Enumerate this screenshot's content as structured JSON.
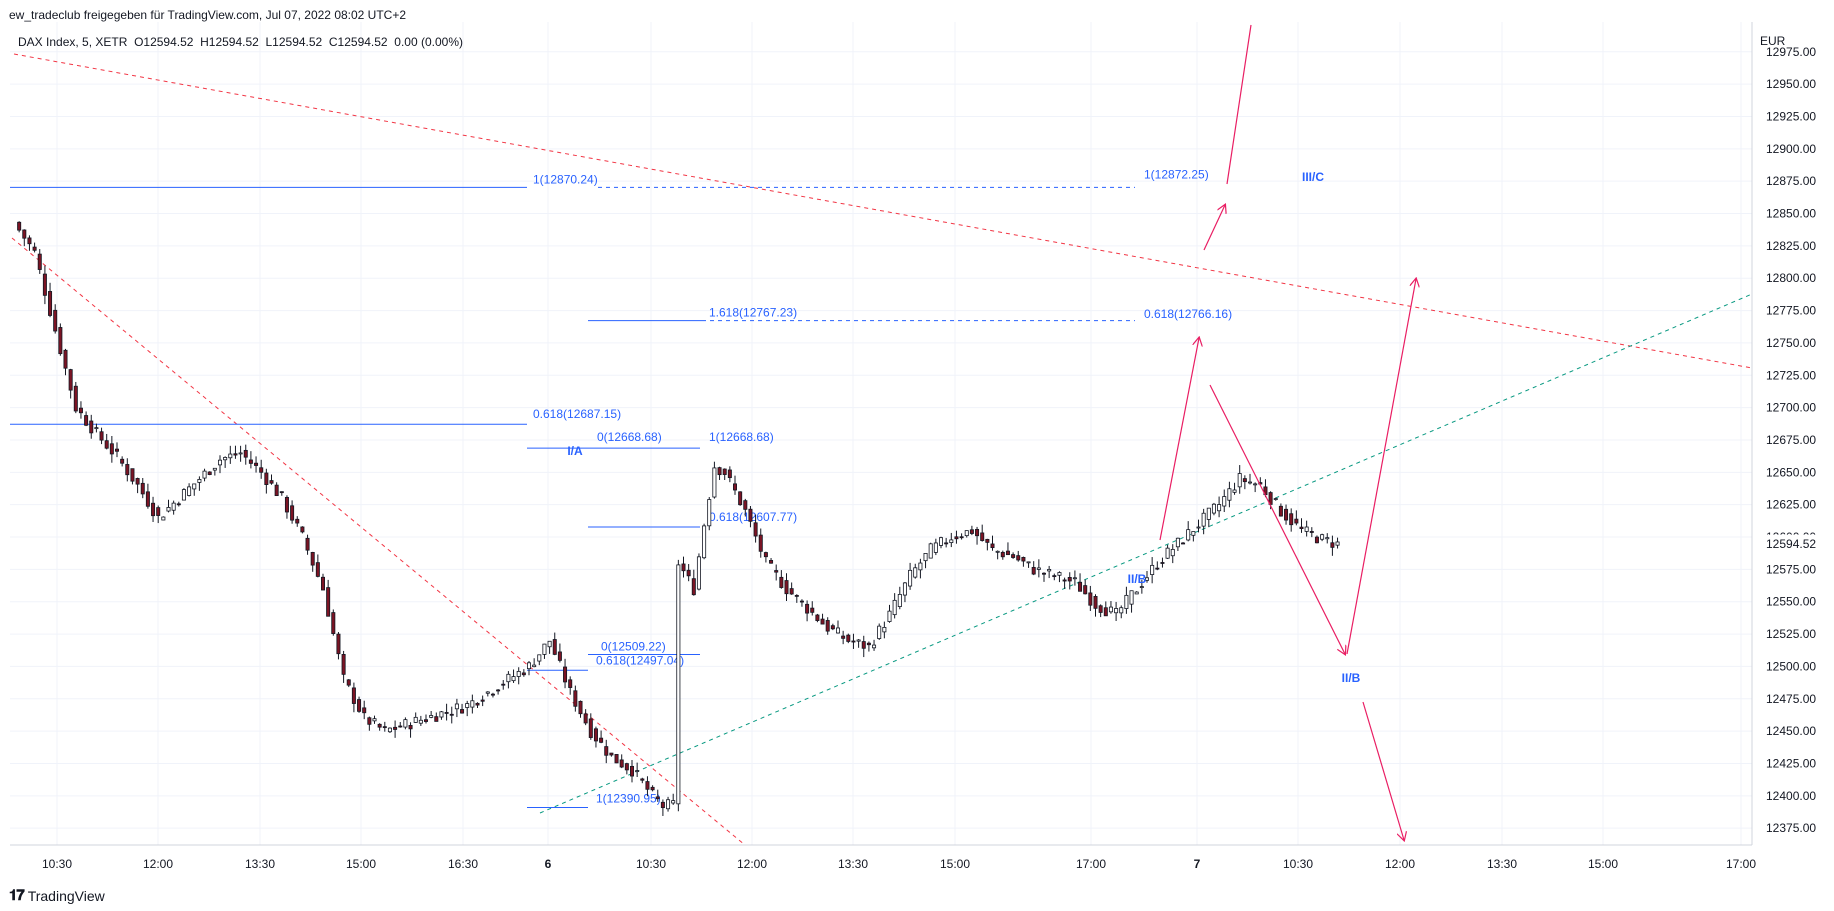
{
  "header": {
    "published": "ew_tradeclub freigegeben für TradingView.com, Jul 07, 2022 08:02 UTC+2"
  },
  "legend": {
    "symbol": "DAX Index, 5, XETR",
    "ohlc": "O12594.52  H12594.52  L12594.52  C12594.52  0.00 (0.00%)"
  },
  "footer": {
    "brand": "TradingView",
    "logo_icon": "tradingview-logo-icon"
  },
  "colors": {
    "up_candle": "#ffffff",
    "down_candle": "#7b1424",
    "wick": "#131722",
    "fib": "#2962ff",
    "red_trend": "#f23645",
    "green_trend": "#089981",
    "arrow": "#e91e63"
  },
  "chart_data": {
    "type": "candlestick",
    "symbol": "DAX Index",
    "timeframe": "5",
    "exchange": "XETR",
    "currency": "EUR",
    "last_price": "12594.52",
    "ylim": [
      12362,
      12998
    ],
    "y_ticks": [
      "12975.00",
      "12950.00",
      "12925.00",
      "12900.00",
      "12875.00",
      "12850.00",
      "12825.00",
      "12800.00",
      "12775.00",
      "12750.00",
      "12725.00",
      "12700.00",
      "12675.00",
      "12650.00",
      "12625.00",
      "12600.00",
      "12575.00",
      "12550.00",
      "12525.00",
      "12500.00",
      "12475.00",
      "12450.00",
      "12425.00",
      "12400.00",
      "12375.00"
    ],
    "x_ticks": [
      "10:30",
      "12:00",
      "13:30",
      "15:00",
      "16:30",
      "6",
      "10:30",
      "12:00",
      "13:30",
      "15:00",
      "17:00",
      "7",
      "10:30",
      "12:00",
      "13:30",
      "15:00",
      "17:00"
    ],
    "close_path": [
      [
        0,
        12843
      ],
      [
        4,
        12820
      ],
      [
        8,
        12760
      ],
      [
        12,
        12700
      ],
      [
        16,
        12680
      ],
      [
        20,
        12662
      ],
      [
        24,
        12640
      ],
      [
        28,
        12615
      ],
      [
        32,
        12630
      ],
      [
        36,
        12645
      ],
      [
        40,
        12660
      ],
      [
        44,
        12665
      ],
      [
        48,
        12650
      ],
      [
        52,
        12630
      ],
      [
        56,
        12600
      ],
      [
        60,
        12560
      ],
      [
        64,
        12490
      ],
      [
        68,
        12460
      ],
      [
        72,
        12450
      ],
      [
        76,
        12455
      ],
      [
        80,
        12460
      ],
      [
        84,
        12465
      ],
      [
        88,
        12470
      ],
      [
        92,
        12480
      ],
      [
        96,
        12490
      ],
      [
        100,
        12500
      ],
      [
        104,
        12520
      ],
      [
        108,
        12480
      ],
      [
        112,
        12450
      ],
      [
        116,
        12430
      ],
      [
        120,
        12420
      ],
      [
        124,
        12400
      ],
      [
        126,
        12392
      ],
      [
        128,
        12393
      ],
      [
        129,
        12580
      ],
      [
        132,
        12560
      ],
      [
        134,
        12610
      ],
      [
        136,
        12655
      ],
      [
        138,
        12650
      ],
      [
        142,
        12620
      ],
      [
        146,
        12580
      ],
      [
        150,
        12560
      ],
      [
        154,
        12545
      ],
      [
        158,
        12530
      ],
      [
        162,
        12520
      ],
      [
        166,
        12515
      ],
      [
        170,
        12540
      ],
      [
        174,
        12570
      ],
      [
        178,
        12590
      ],
      [
        182,
        12600
      ],
      [
        186,
        12605
      ],
      [
        190,
        12590
      ],
      [
        194,
        12585
      ],
      [
        198,
        12575
      ],
      [
        202,
        12570
      ],
      [
        206,
        12565
      ],
      [
        210,
        12548
      ],
      [
        214,
        12540
      ],
      [
        218,
        12560
      ],
      [
        222,
        12580
      ],
      [
        226,
        12595
      ],
      [
        230,
        12610
      ],
      [
        234,
        12625
      ],
      [
        238,
        12645
      ],
      [
        242,
        12640
      ],
      [
        246,
        12620
      ],
      [
        250,
        12605
      ],
      [
        254,
        12598
      ],
      [
        257,
        12594.52
      ]
    ],
    "fib_levels": [
      {
        "label": "1(12870.24)",
        "value": 12870.24
      },
      {
        "label": "1.618(12767.23)",
        "value": 12767.23
      },
      {
        "label": "0.618(12687.15)",
        "value": 12687.15
      },
      {
        "label": "0(12668.68)",
        "value": 12668.68
      },
      {
        "label": "1(12668.68)",
        "value": 12668.68
      },
      {
        "label": "0.618(12607.77)",
        "value": 12607.77
      },
      {
        "label": "0(12509.22)",
        "value": 12509.22
      },
      {
        "label": "0.618(12497.04)",
        "value": 12497.04
      },
      {
        "label": "1(12390.95)",
        "value": 12390.95
      },
      {
        "label": "1(12872.25)",
        "value": 12872.25
      },
      {
        "label": "0.618(12766.16)",
        "value": 12766.16
      }
    ],
    "wave_labels": [
      "I/A",
      "II/B",
      "III/C",
      "II/B"
    ]
  }
}
